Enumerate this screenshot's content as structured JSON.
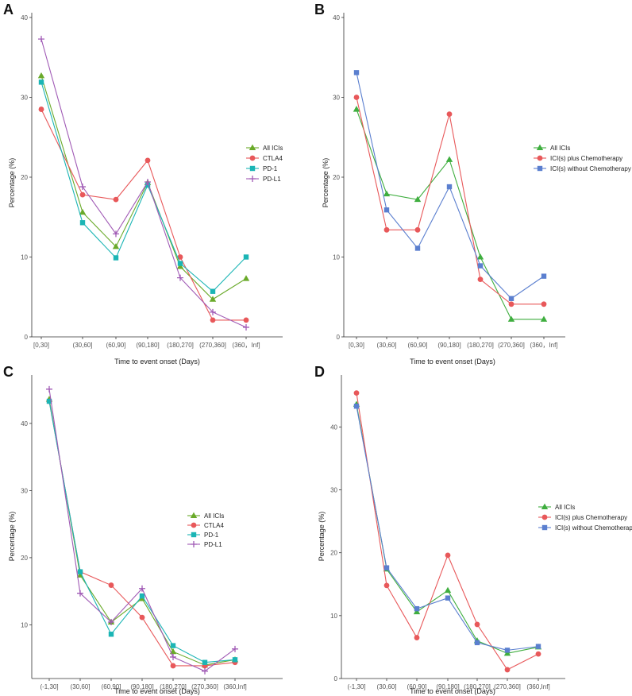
{
  "chart_data": [
    {
      "panel": "A",
      "type": "line",
      "xlabel": "Time to event onset (Days)",
      "ylabel": "Percentage (%)",
      "ylim": [
        0,
        40
      ],
      "yticks": [
        0,
        10,
        20,
        30,
        40
      ],
      "categories": [
        "[0,30]",
        "(30,60]",
        "(60,90]",
        "(90,180]",
        "(180,270]",
        "(270,360]",
        "(360，Inf]"
      ],
      "series": [
        {
          "name": "All ICIs",
          "color": "#6aaa2a",
          "marker": "triangle",
          "values": [
            32.7,
            15.6,
            11.3,
            19.3,
            8.8,
            4.7,
            7.3
          ]
        },
        {
          "name": "CTLA4",
          "color": "#e8585a",
          "marker": "circle",
          "values": [
            28.5,
            17.8,
            17.2,
            22.1,
            10.0,
            2.1,
            2.1
          ]
        },
        {
          "name": "PD-1",
          "color": "#1bb5b5",
          "marker": "square",
          "values": [
            31.9,
            14.3,
            9.9,
            19.0,
            9.2,
            5.7,
            10.0
          ]
        },
        {
          "name": "PD-L1",
          "color": "#a05ab5",
          "marker": "plus",
          "values": [
            37.3,
            18.8,
            12.9,
            19.4,
            7.4,
            3.1,
            1.2
          ]
        }
      ]
    },
    {
      "panel": "B",
      "type": "line",
      "xlabel": "Time to event onset (Days)",
      "ylabel": "Percentage (%)",
      "ylim": [
        0,
        40
      ],
      "yticks": [
        0,
        10,
        20,
        30,
        40
      ],
      "categories": [
        "[0,30]",
        "(30,60]",
        "(60,90]",
        "(90,180]",
        "(180,270]",
        "(270,360]",
        "(360，Inf]"
      ],
      "series": [
        {
          "name": "All ICIs",
          "color": "#3fae3f",
          "marker": "triangle",
          "values": [
            28.5,
            17.9,
            17.2,
            22.2,
            10.0,
            2.2,
            2.2
          ]
        },
        {
          "name": "ICI(s) plus Chemotherapy",
          "color": "#e8585a",
          "marker": "circle",
          "values": [
            30.0,
            13.4,
            13.4,
            27.9,
            7.2,
            4.1,
            4.1
          ]
        },
        {
          "name": "ICI(s) without Chemotherapy",
          "color": "#5b7fcf",
          "marker": "square",
          "values": [
            33.1,
            15.9,
            11.1,
            18.8,
            8.9,
            4.8,
            7.6
          ]
        }
      ]
    },
    {
      "panel": "C",
      "type": "line",
      "xlabel": "Time to event onset (Days)",
      "ylabel": "Percentage (%)",
      "ylim": [
        2,
        46.5
      ],
      "yticks": [
        10,
        20,
        30,
        40
      ],
      "categories": [
        "(-1,30]",
        "(30,60]",
        "(60,90]",
        "(90,180]",
        "(180,270]",
        "(270,360]",
        "(360,Inf]"
      ],
      "series": [
        {
          "name": "All ICIs",
          "color": "#6aaa2a",
          "marker": "triangle",
          "values": [
            43.6,
            17.4,
            10.4,
            13.9,
            6.0,
            4.0,
            4.8
          ]
        },
        {
          "name": "CTLA4",
          "color": "#e8585a",
          "marker": "circle",
          "values": [
            43.3,
            17.9,
            15.9,
            11.1,
            3.9,
            3.9,
            4.4
          ]
        },
        {
          "name": "PD-1",
          "color": "#1bb5b5",
          "marker": "square",
          "values": [
            43.3,
            17.9,
            8.6,
            14.3,
            6.9,
            4.4,
            4.8
          ]
        },
        {
          "name": "PD-L1",
          "color": "#a05ab5",
          "marker": "plus",
          "values": [
            45.1,
            14.7,
            10.4,
            15.4,
            5.2,
            3.1,
            6.4
          ]
        }
      ]
    },
    {
      "panel": "D",
      "type": "line",
      "xlabel": "Time to event onset (Days)",
      "ylabel": "Percentage (%)",
      "ylim": [
        0,
        47.5
      ],
      "yticks": [
        0,
        10,
        20,
        30,
        40
      ],
      "categories": [
        "(-1,30]",
        "(30,60]",
        "(60,90]",
        "(90,180]",
        "(180,270]",
        "(270,360]",
        "(360,Inf]"
      ],
      "series": [
        {
          "name": "All ICIs",
          "color": "#3fae3f",
          "marker": "triangle",
          "values": [
            43.6,
            17.4,
            10.6,
            14.0,
            6.0,
            4.0,
            5.0
          ]
        },
        {
          "name": "ICI(s) plus Chemotherapy",
          "color": "#e8585a",
          "marker": "circle",
          "values": [
            45.4,
            14.8,
            6.5,
            19.6,
            8.6,
            1.4,
            3.9
          ]
        },
        {
          "name": "ICI(s) without Chemotherapy",
          "color": "#5b7fcf",
          "marker": "square",
          "values": [
            43.3,
            17.6,
            11.1,
            12.8,
            5.7,
            4.5,
            5.1
          ]
        }
      ]
    }
  ]
}
